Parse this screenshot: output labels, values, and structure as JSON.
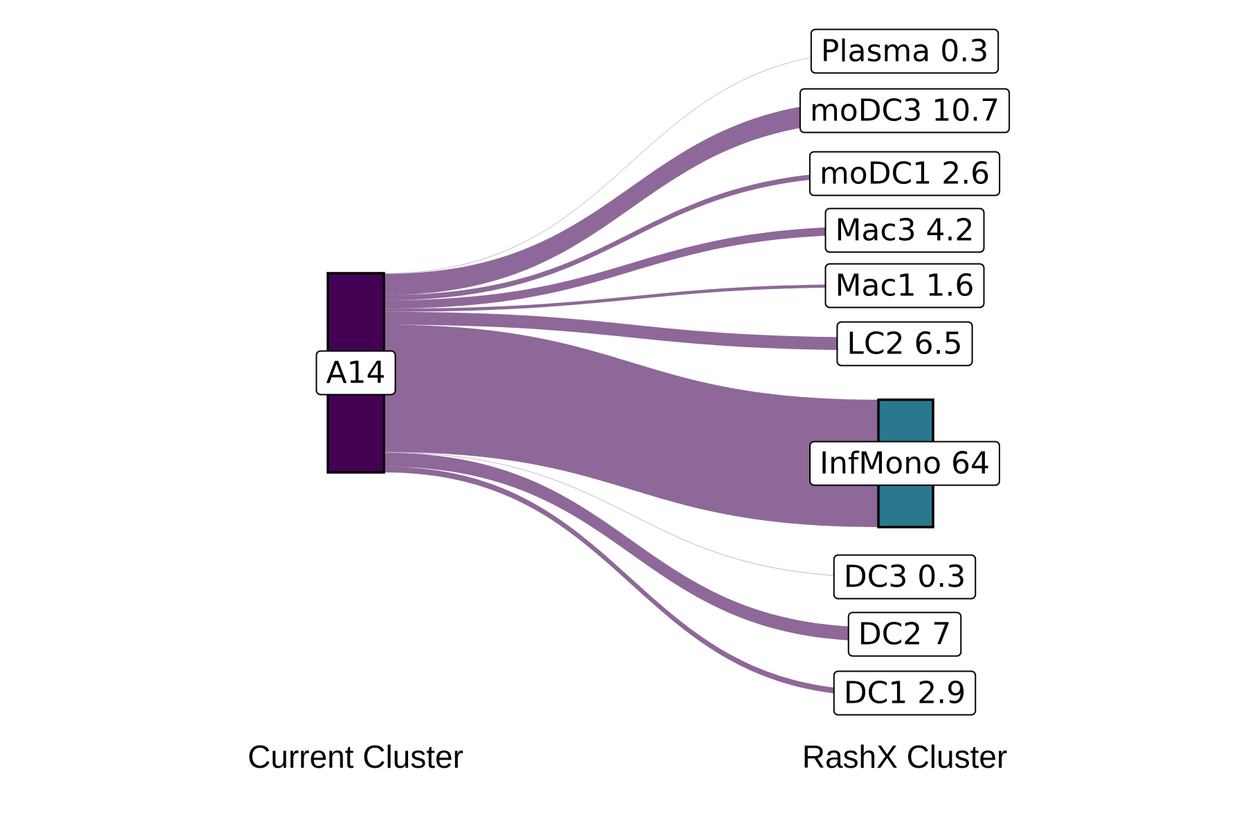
{
  "chart_data": {
    "type": "sankey",
    "source": {
      "name": "A14"
    },
    "targets": [
      {
        "name": "Plasma",
        "value": 0.3,
        "label": "Plasma 0.3"
      },
      {
        "name": "moDC3",
        "value": 10.7,
        "label": "moDC3 10.7"
      },
      {
        "name": "moDC1",
        "value": 2.6,
        "label": "moDC1 2.6"
      },
      {
        "name": "Mac3",
        "value": 4.2,
        "label": "Mac3 4.2"
      },
      {
        "name": "Mac1",
        "value": 1.6,
        "label": "Mac1 1.6"
      },
      {
        "name": "LC2",
        "value": 6.5,
        "label": "LC2 6.5"
      },
      {
        "name": "InfMono",
        "value": 64,
        "label": "InfMono 64"
      },
      {
        "name": "DC3",
        "value": 0.3,
        "label": "DC3 0.3"
      },
      {
        "name": "DC2",
        "value": 7,
        "label": "DC2 7"
      },
      {
        "name": "DC1",
        "value": 2.9,
        "label": "DC1 2.9"
      }
    ],
    "axis_labels": {
      "left": "Current Cluster",
      "right": "RashX Cluster"
    },
    "colors": {
      "source_node": "#440154",
      "infmono_node": "#2a788e",
      "flow": "#8e6898"
    }
  }
}
